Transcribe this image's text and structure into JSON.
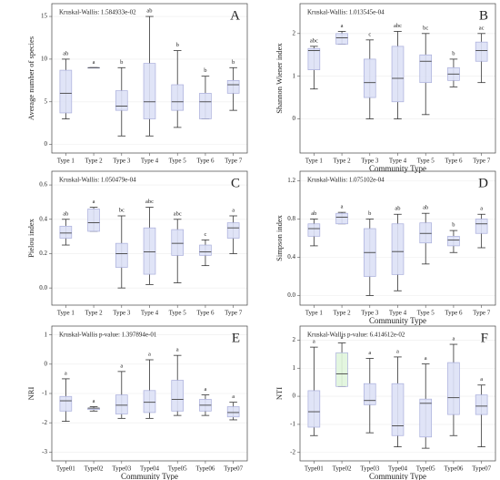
{
  "chart_data": [
    {
      "type": "box",
      "panel": "A",
      "annotation": "Kruskal-Wallis: 1.584933e-02",
      "ylabel": "Average number of species",
      "categories": [
        "Type 1",
        "Type 2",
        "Type 3",
        "Type 4",
        "Type 5",
        "Type 6",
        "Type 7"
      ],
      "boxes": [
        {
          "min": 3,
          "q1": 3.7,
          "median": 6,
          "q3": 8.7,
          "max": 10
        },
        {
          "min": 9,
          "q1": 9,
          "median": 9,
          "q3": 9,
          "max": 9
        },
        {
          "min": 1,
          "q1": 4,
          "median": 4.5,
          "q3": 6.3,
          "max": 9
        },
        {
          "min": 1,
          "q1": 3,
          "median": 5,
          "q3": 9.5,
          "max": 15
        },
        {
          "min": 2,
          "q1": 4,
          "median": 5,
          "q3": 7,
          "max": 11
        },
        {
          "min": 3,
          "q1": 3,
          "median": 5,
          "q3": 6,
          "max": 8
        },
        {
          "min": 4,
          "q1": 6,
          "median": 7,
          "q3": 7.5,
          "max": 9
        }
      ],
      "letters": [
        "ab",
        "a",
        "b",
        "ab",
        "b",
        "b",
        "b"
      ],
      "colors": [
        "#dde1f6",
        "#dde1f6",
        "#dde1f6",
        "#dde1f6",
        "#dde1f6",
        "#dde1f6",
        "#dde1f6"
      ],
      "ylim": [
        -1,
        16.5
      ],
      "yticks": [
        0,
        5,
        10,
        15
      ],
      "grid": true
    },
    {
      "type": "box",
      "panel": "B",
      "annotation": "Kruskal-Wallis: 1.013545e-04",
      "ylabel": "Shannon Wiener index",
      "xlabel": "Community Type",
      "categories": [
        "Type 1",
        "Type 2",
        "Type 3",
        "Type 4",
        "Type 5",
        "Type 6",
        "Type 7"
      ],
      "boxes": [
        {
          "min": 0.7,
          "q1": 1.15,
          "median": 1.6,
          "q3": 1.65,
          "max": 1.7
        },
        {
          "min": 1.75,
          "q1": 1.75,
          "median": 1.9,
          "q3": 2.0,
          "max": 2.05
        },
        {
          "min": 0,
          "q1": 0.5,
          "median": 0.85,
          "q3": 1.4,
          "max": 1.85
        },
        {
          "min": 0,
          "q1": 0.4,
          "median": 0.95,
          "q3": 1.7,
          "max": 2.05
        },
        {
          "min": 0.1,
          "q1": 0.85,
          "median": 1.35,
          "q3": 1.5,
          "max": 2.0
        },
        {
          "min": 0.75,
          "q1": 0.9,
          "median": 1.05,
          "q3": 1.2,
          "max": 1.4
        },
        {
          "min": 0.85,
          "q1": 1.35,
          "median": 1.6,
          "q3": 1.8,
          "max": 2.0
        }
      ],
      "letters": [
        "abc",
        "a",
        "c",
        "abc",
        "bc",
        "b",
        "ac"
      ],
      "colors": [
        "#dde1f6",
        "#dde1f6",
        "#dde1f6",
        "#dde1f6",
        "#dde1f6",
        "#dde1f6",
        "#dde1f6"
      ],
      "ylim": [
        -0.8,
        2.7
      ],
      "yticks": [
        0,
        1,
        2
      ],
      "grid": true
    },
    {
      "type": "box",
      "panel": "C",
      "annotation": "Kruskal-Wallis: 1.050479e-04",
      "ylabel": "Pielou index",
      "categories": [
        "Type 1",
        "Type 2",
        "Type 3",
        "Type 4",
        "Type 5",
        "Type 6",
        "Type 7"
      ],
      "boxes": [
        {
          "min": 0.25,
          "q1": 0.29,
          "median": 0.32,
          "q3": 0.36,
          "max": 0.4
        },
        {
          "min": 0.33,
          "q1": 0.33,
          "median": 0.38,
          "q3": 0.46,
          "max": 0.47
        },
        {
          "min": 0,
          "q1": 0.12,
          "median": 0.2,
          "q3": 0.26,
          "max": 0.42
        },
        {
          "min": 0.02,
          "q1": 0.08,
          "median": 0.21,
          "q3": 0.35,
          "max": 0.47
        },
        {
          "min": 0.03,
          "q1": 0.19,
          "median": 0.26,
          "q3": 0.34,
          "max": 0.4
        },
        {
          "min": 0.13,
          "q1": 0.19,
          "median": 0.21,
          "q3": 0.25,
          "max": 0.28
        },
        {
          "min": 0.2,
          "q1": 0.29,
          "median": 0.35,
          "q3": 0.38,
          "max": 0.42
        }
      ],
      "letters": [
        "ab",
        "a",
        "bc",
        "abc",
        "abc",
        "c",
        "a"
      ],
      "colors": [
        "#dde1f6",
        "#dde1f6",
        "#dde1f6",
        "#dde1f6",
        "#dde1f6",
        "#dde1f6",
        "#dde1f6"
      ],
      "ylim": [
        -0.1,
        0.68
      ],
      "yticks": [
        {
          "value": 0,
          "label": "0.0"
        },
        0.2,
        0.4,
        0.6
      ],
      "grid": true
    },
    {
      "type": "box",
      "panel": "D",
      "annotation": "Kruskal-Wallis: 1.075102e-04",
      "ylabel": "Simpson index",
      "xlabel": "Community Type",
      "categories": [
        "Type 1",
        "Type 2",
        "Type 3",
        "Type 4",
        "Type 5",
        "Type 6",
        "Type 7"
      ],
      "boxes": [
        {
          "min": 0.52,
          "q1": 0.62,
          "median": 0.7,
          "q3": 0.75,
          "max": 0.8
        },
        {
          "min": 0.75,
          "q1": 0.75,
          "median": 0.82,
          "q3": 0.86,
          "max": 0.87
        },
        {
          "min": 0,
          "q1": 0.2,
          "median": 0.45,
          "q3": 0.7,
          "max": 0.8
        },
        {
          "min": 0.05,
          "q1": 0.22,
          "median": 0.46,
          "q3": 0.75,
          "max": 0.85
        },
        {
          "min": 0.33,
          "q1": 0.55,
          "median": 0.65,
          "q3": 0.76,
          "max": 0.86
        },
        {
          "min": 0.45,
          "q1": 0.52,
          "median": 0.58,
          "q3": 0.62,
          "max": 0.68
        },
        {
          "min": 0.5,
          "q1": 0.65,
          "median": 0.75,
          "q3": 0.8,
          "max": 0.85
        }
      ],
      "letters": [
        "ab",
        "a",
        "b",
        "ab",
        "ab",
        "b",
        "a"
      ],
      "colors": [
        "#dde1f6",
        "#dde1f6",
        "#dde1f6",
        "#dde1f6",
        "#dde1f6",
        "#dde1f6",
        "#dde1f6"
      ],
      "ylim": [
        -0.1,
        1.3
      ],
      "yticks": [
        {
          "value": 0,
          "label": "0.0"
        },
        0.4,
        0.8,
        1.2
      ],
      "grid": true
    },
    {
      "type": "box",
      "panel": "E",
      "annotation": "Kruskal-Wallis p-value: 1.397894e-01",
      "ylabel": "NRI",
      "xlabel": "Community Type",
      "categories": [
        "Type01",
        "Type02",
        "Type03",
        "Type04",
        "Type05",
        "Type06",
        "Type07"
      ],
      "boxes": [
        {
          "min": -1.95,
          "q1": -1.6,
          "median": -1.25,
          "q3": -1.1,
          "max": -0.5
        },
        {
          "min": -1.6,
          "q1": -1.55,
          "median": -1.5,
          "q3": -1.5,
          "max": -1.45
        },
        {
          "min": -1.85,
          "q1": -1.7,
          "median": -1.4,
          "q3": -1.05,
          "max": -0.25
        },
        {
          "min": -1.85,
          "q1": -1.65,
          "median": -1.3,
          "q3": -0.9,
          "max": 0.15
        },
        {
          "min": -1.75,
          "q1": -1.6,
          "median": -1.2,
          "q3": -0.55,
          "max": 0.3
        },
        {
          "min": -1.75,
          "q1": -1.6,
          "median": -1.4,
          "q3": -1.2,
          "max": -1.05
        },
        {
          "min": -1.9,
          "q1": -1.8,
          "median": -1.65,
          "q3": -1.45,
          "max": -1.3
        }
      ],
      "letters": [
        "a",
        "a",
        "a",
        "a",
        "a",
        "a",
        "a"
      ],
      "colors": [
        "#dde1f6",
        "#dde1f6",
        "#dde1f6",
        "#dde1f6",
        "#dde1f6",
        "#dde1f6",
        "#dde1f6"
      ],
      "ylim": [
        -3.3,
        1.3
      ],
      "yticks": [
        -3,
        -2,
        -1,
        0,
        1
      ],
      "grid": true
    },
    {
      "type": "box",
      "panel": "F",
      "annotation": "Kruskal-Wallis p-value: 6.414612e-02",
      "ylabel": "NTI",
      "xlabel": "Community Type",
      "categories": [
        "Type01",
        "Type02",
        "Type03",
        "Type04",
        "Type05",
        "Type06",
        "Type07"
      ],
      "boxes": [
        {
          "min": -1.4,
          "q1": -1.1,
          "median": -0.55,
          "q3": 0.2,
          "max": 1.75
        },
        {
          "min": 0.35,
          "q1": 0.35,
          "median": 0.8,
          "q3": 1.55,
          "max": 1.9
        },
        {
          "min": -1.3,
          "q1": -0.3,
          "median": -0.15,
          "q3": 0.45,
          "max": 1.35
        },
        {
          "min": -1.8,
          "q1": -1.4,
          "median": -1.05,
          "q3": 0.45,
          "max": 1.4
        },
        {
          "min": -1.85,
          "q1": -1.45,
          "median": -0.25,
          "q3": -0.1,
          "max": 1.15
        },
        {
          "min": -1.4,
          "q1": -0.65,
          "median": -0.05,
          "q3": 1.2,
          "max": 1.85
        },
        {
          "min": -1.8,
          "q1": -0.65,
          "median": -0.35,
          "q3": 0.05,
          "max": 0.4
        }
      ],
      "letters": [
        "a",
        "a",
        "a",
        "a",
        "a",
        "a",
        "a"
      ],
      "colors": [
        "#dde1f6",
        "#e0f5dc",
        "#dde1f6",
        "#dde1f6",
        "#dde1f6",
        "#dde1f6",
        "#dde1f6"
      ],
      "ylim": [
        -2.3,
        2.5
      ],
      "yticks": [
        -2,
        -1,
        0,
        1,
        2
      ],
      "grid": true
    }
  ]
}
